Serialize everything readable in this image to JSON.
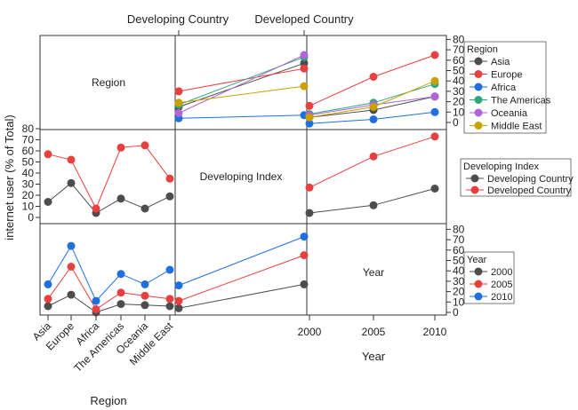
{
  "chart_data": {
    "type": "line",
    "layout": "scatterplot-matrix",
    "variables": [
      "Region",
      "Developing Index",
      "Year"
    ],
    "ylabel": "internet user (% of Total)",
    "xlabel_region": "Region",
    "xlabel_year": "Year",
    "column_headers": [
      "Developing Country",
      "Developed Country"
    ],
    "diagonal_labels": [
      "Region",
      "Developing Index",
      "Year"
    ],
    "categories": [
      "Asia",
      "Europe",
      "Africa",
      "The Americas",
      "Oceania",
      "Middle East"
    ],
    "years": [
      "2000",
      "2005",
      "2010"
    ],
    "index_levels": [
      "Developing Country",
      "Developed Country"
    ],
    "ylim": [
      0,
      80
    ],
    "yticks": [
      "0",
      "10",
      "20",
      "30",
      "40",
      "50",
      "60",
      "70",
      "80"
    ],
    "panels": {
      "region_vs_index": {
        "series": [
          {
            "name": "Asia",
            "color": "#4d4d4d",
            "values": [
              15,
              57
            ]
          },
          {
            "name": "Europe",
            "color": "#e8403f",
            "values": [
              30,
              52
            ]
          },
          {
            "name": "Africa",
            "color": "#1f6fe0",
            "values": [
              4,
              7
            ]
          },
          {
            "name": "The Americas",
            "color": "#2ea87a",
            "values": [
              17,
              63
            ]
          },
          {
            "name": "Oceania",
            "color": "#b066d9",
            "values": [
              9,
              65
            ]
          },
          {
            "name": "Middle East",
            "color": "#c9a100",
            "values": [
              19,
              35
            ]
          }
        ]
      },
      "region_vs_year": {
        "series": [
          {
            "name": "Asia",
            "color": "#4d4d4d",
            "values": [
              5,
              12,
              25
            ]
          },
          {
            "name": "Europe",
            "color": "#e8403f",
            "values": [
              16,
              44,
              65
            ]
          },
          {
            "name": "Africa",
            "color": "#1f6fe0",
            "values": [
              -1,
              3,
              10
            ]
          },
          {
            "name": "The Americas",
            "color": "#2ea87a",
            "values": [
              8,
              19,
              37
            ]
          },
          {
            "name": "Oceania",
            "color": "#b066d9",
            "values": [
              7,
              17,
              25
            ]
          },
          {
            "name": "Middle East",
            "color": "#c9a100",
            "values": [
              5,
              15,
              40
            ]
          }
        ]
      },
      "index_vs_region": {
        "series": [
          {
            "name": "Developing Country",
            "color": "#4d4d4d",
            "values": [
              14,
              31,
              4,
              17,
              8,
              19
            ]
          },
          {
            "name": "Developed Country",
            "color": "#e8403f",
            "values": [
              57,
              52,
              8,
              63,
              65,
              35
            ]
          }
        ]
      },
      "index_vs_year": {
        "series": [
          {
            "name": "Developing Country",
            "color": "#4d4d4d",
            "values": [
              4,
              11,
              26
            ]
          },
          {
            "name": "Developed Country",
            "color": "#e8403f",
            "values": [
              27,
              55,
              73
            ]
          }
        ]
      },
      "year_vs_region": {
        "series": [
          {
            "name": "2000",
            "color": "#4d4d4d",
            "values": [
              6,
              17,
              0,
              8,
              7,
              6
            ]
          },
          {
            "name": "2005",
            "color": "#e8403f",
            "values": [
              13,
              44,
              3,
              19,
              16,
              13
            ]
          },
          {
            "name": "2010",
            "color": "#1f6fe0",
            "values": [
              27,
              64,
              11,
              37,
              27,
              41
            ]
          }
        ]
      },
      "year_vs_index": {
        "series": [
          {
            "name": "2000",
            "color": "#4d4d4d",
            "values": [
              4,
              27
            ]
          },
          {
            "name": "2005",
            "color": "#e8403f",
            "values": [
              11,
              55
            ]
          },
          {
            "name": "2010",
            "color": "#1f6fe0",
            "values": [
              26,
              73
            ]
          }
        ]
      }
    },
    "legends": [
      {
        "title": "Region",
        "entries": [
          "Asia",
          "Europe",
          "Africa",
          "The Americas",
          "Oceania",
          "Middle East"
        ]
      },
      {
        "title": "Developing Index",
        "entries": [
          "Developing Country",
          "Developed Country"
        ]
      },
      {
        "title": "Year",
        "entries": [
          "2000",
          "2005",
          "2010"
        ]
      }
    ]
  }
}
